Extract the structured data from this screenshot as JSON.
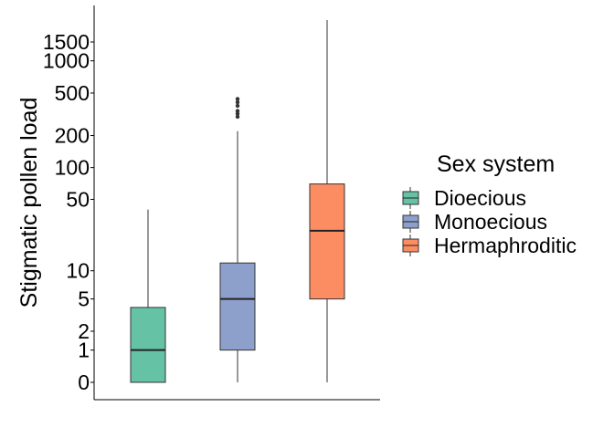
{
  "chart_data": {
    "type": "box",
    "ylabel": "Stigmatic pollen load",
    "xlabel": "",
    "yscale": "log1p",
    "yticks": [
      0,
      1,
      2,
      5,
      10,
      50,
      100,
      200,
      500,
      1000,
      1500
    ],
    "ylim": [
      -0.1,
      2600
    ],
    "grid": false,
    "legend": {
      "title": "Sex system",
      "position": "right"
    },
    "series": [
      {
        "name": "Dioecious",
        "color": "#66c2a5",
        "min": 0,
        "q1": 0,
        "median": 1,
        "q3": 4,
        "max": 40,
        "outliers": []
      },
      {
        "name": "Monoecious",
        "color": "#8da0cb",
        "min": 0,
        "q1": 1,
        "median": 5,
        "q3": 12,
        "max": 220,
        "outliers": [
          300,
          320,
          340,
          380,
          410,
          440
        ]
      },
      {
        "name": "Hermaphroditic",
        "color": "#fc8d62",
        "min": 0,
        "q1": 5,
        "median": 25,
        "q3": 70,
        "max": 2400,
        "outliers": []
      }
    ]
  }
}
